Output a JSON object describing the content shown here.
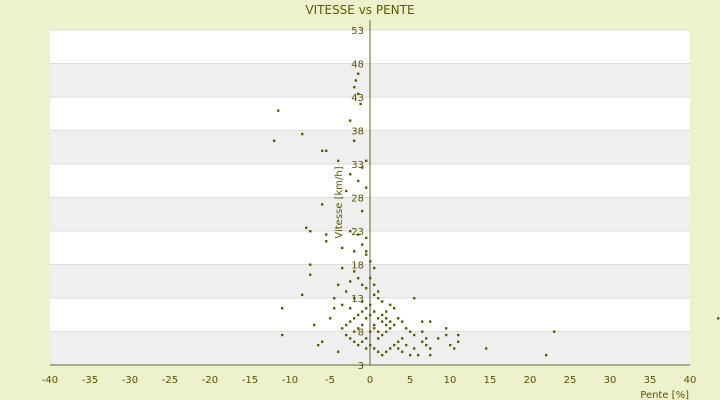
{
  "chart_data": {
    "type": "scatter",
    "title": "VITESSE vs PENTE",
    "xlabel": "Pente [%]",
    "ylabel": "Vitesse [km/h]",
    "xlim": [
      -40,
      40
    ],
    "ylim": [
      3,
      53
    ],
    "x_ticks": [
      "-40",
      "-35",
      "-30",
      "-25",
      "-20",
      "-15",
      "-10",
      "-5",
      "0",
      "5",
      "10",
      "15",
      "20",
      "25",
      "30",
      "35",
      "40"
    ],
    "y_ticks": [
      "3",
      "8",
      "13",
      "18",
      "23",
      "28",
      "33",
      "38",
      "43",
      "48",
      "53"
    ],
    "grid": true,
    "legend": "none",
    "colors": {
      "page_background": "#eef2cc",
      "band_light": "#ffffff",
      "band_dark": "#efefef",
      "marker": "#5a5a00",
      "axis": "#556b2f",
      "text": "#555500"
    },
    "points": [
      [
        -11.5,
        41.0
      ],
      [
        -12.0,
        36.5
      ],
      [
        -8.5,
        37.5
      ],
      [
        -6.0,
        35.0
      ],
      [
        -5.5,
        35.0
      ],
      [
        -4.0,
        33.5
      ],
      [
        -2.5,
        39.5
      ],
      [
        -2.0,
        36.5
      ],
      [
        -1.5,
        46.5
      ],
      [
        -1.8,
        45.5
      ],
      [
        -1.5,
        43.5
      ],
      [
        -1.2,
        42.0
      ],
      [
        -2.0,
        44.5
      ],
      [
        -1.0,
        32.5
      ],
      [
        -0.5,
        33.5
      ],
      [
        -2.5,
        31.5
      ],
      [
        -1.5,
        30.5
      ],
      [
        -0.5,
        29.5
      ],
      [
        -3.0,
        29.0
      ],
      [
        -6.0,
        27.0
      ],
      [
        -8.0,
        23.5
      ],
      [
        -7.5,
        23.0
      ],
      [
        -5.5,
        22.5
      ],
      [
        -5.5,
        21.5
      ],
      [
        -2.5,
        23.0
      ],
      [
        -1.5,
        22.5
      ],
      [
        -0.5,
        22.0
      ],
      [
        -3.5,
        20.5
      ],
      [
        -2.0,
        20.0
      ],
      [
        -1.0,
        21.0
      ],
      [
        -0.5,
        19.5
      ],
      [
        0.0,
        18.5
      ],
      [
        -7.5,
        18.0
      ],
      [
        -7.5,
        16.5
      ],
      [
        -8.5,
        13.5
      ],
      [
        -11.0,
        11.5
      ],
      [
        -11.0,
        7.5
      ],
      [
        -7.0,
        9.0
      ],
      [
        -6.5,
        6.0
      ],
      [
        -6.0,
        6.5
      ],
      [
        -4.0,
        5.0
      ],
      [
        -4.5,
        11.5
      ],
      [
        -5.0,
        10.0
      ],
      [
        -4.5,
        13.0
      ],
      [
        -3.5,
        12.0
      ],
      [
        -3.0,
        14.0
      ],
      [
        -2.5,
        15.5
      ],
      [
        -2.0,
        17.0
      ],
      [
        -1.5,
        16.0
      ],
      [
        -1.0,
        15.0
      ],
      [
        -0.5,
        14.5
      ],
      [
        0.0,
        16.0
      ],
      [
        0.5,
        15.0
      ],
      [
        0.5,
        13.5
      ],
      [
        1.0,
        13.0
      ],
      [
        1.5,
        12.5
      ],
      [
        0.0,
        12.0
      ],
      [
        -0.5,
        11.5
      ],
      [
        -1.0,
        11.0
      ],
      [
        -1.5,
        10.5
      ],
      [
        -2.0,
        10.0
      ],
      [
        -2.5,
        9.5
      ],
      [
        -3.0,
        9.0
      ],
      [
        -3.5,
        8.5
      ],
      [
        -3.0,
        7.5
      ],
      [
        -2.5,
        7.0
      ],
      [
        -2.0,
        6.5
      ],
      [
        -1.5,
        6.0
      ],
      [
        -1.0,
        6.5
      ],
      [
        -0.5,
        7.0
      ],
      [
        0.0,
        8.0
      ],
      [
        0.5,
        9.0
      ],
      [
        1.0,
        10.0
      ],
      [
        1.5,
        10.5
      ],
      [
        2.0,
        11.0
      ],
      [
        2.5,
        12.0
      ],
      [
        3.0,
        11.5
      ],
      [
        2.0,
        10.0
      ],
      [
        2.5,
        9.5
      ],
      [
        3.0,
        9.0
      ],
      [
        3.5,
        10.0
      ],
      [
        4.0,
        9.5
      ],
      [
        4.5,
        8.5
      ],
      [
        5.0,
        8.0
      ],
      [
        5.5,
        7.5
      ],
      [
        4.0,
        7.0
      ],
      [
        3.5,
        6.5
      ],
      [
        3.0,
        6.0
      ],
      [
        2.5,
        5.5
      ],
      [
        2.0,
        5.0
      ],
      [
        1.5,
        4.5
      ],
      [
        1.0,
        5.0
      ],
      [
        0.5,
        5.5
      ],
      [
        0.0,
        6.0
      ],
      [
        -0.5,
        5.5
      ],
      [
        1.0,
        7.0
      ],
      [
        1.5,
        7.5
      ],
      [
        2.0,
        8.0
      ],
      [
        2.5,
        8.5
      ],
      [
        0.5,
        8.5
      ],
      [
        1.0,
        8.0
      ],
      [
        1.5,
        9.5
      ],
      [
        2.0,
        9.0
      ],
      [
        -1.0,
        9.0
      ],
      [
        -1.5,
        8.5
      ],
      [
        -2.0,
        8.0
      ],
      [
        -0.5,
        10.0
      ],
      [
        0.0,
        10.5
      ],
      [
        0.5,
        11.0
      ],
      [
        -1.0,
        12.5
      ],
      [
        -2.0,
        13.0
      ],
      [
        -2.5,
        11.5
      ],
      [
        5.5,
        13.0
      ],
      [
        6.5,
        9.5
      ],
      [
        7.5,
        9.5
      ],
      [
        6.5,
        8.0
      ],
      [
        7.0,
        7.0
      ],
      [
        6.5,
        6.5
      ],
      [
        7.0,
        6.0
      ],
      [
        7.5,
        5.5
      ],
      [
        7.5,
        4.5
      ],
      [
        8.5,
        7.0
      ],
      [
        9.5,
        7.5
      ],
      [
        9.5,
        8.5
      ],
      [
        10.0,
        6.0
      ],
      [
        10.5,
        5.5
      ],
      [
        11.0,
        6.5
      ],
      [
        11.0,
        7.5
      ],
      [
        5.5,
        5.5
      ],
      [
        4.5,
        6.0
      ],
      [
        4.0,
        5.0
      ],
      [
        3.5,
        5.5
      ],
      [
        6.0,
        4.5
      ],
      [
        5.0,
        4.5
      ],
      [
        14.5,
        5.5
      ],
      [
        22.0,
        4.5
      ],
      [
        23.0,
        8.0
      ],
      [
        43.5,
        10.0
      ],
      [
        -1.0,
        26.0
      ],
      [
        -0.5,
        20.0
      ],
      [
        0.5,
        17.5
      ],
      [
        1.0,
        14.0
      ],
      [
        -4.0,
        15.0
      ],
      [
        -3.5,
        17.5
      ]
    ]
  }
}
